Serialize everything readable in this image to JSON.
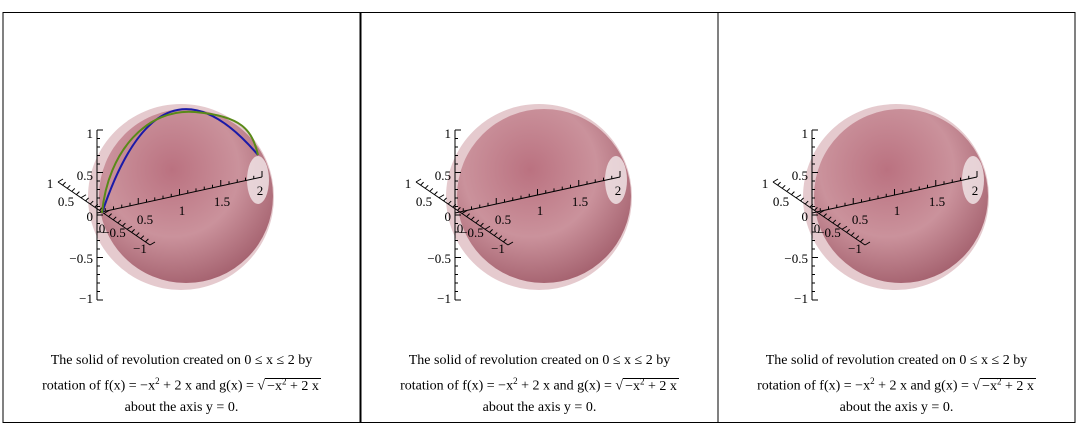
{
  "panels": [
    {
      "y_axis_ticks": [
        "1",
        "0.5",
        "0",
        "−0.5",
        "−1"
      ],
      "x_axis_ticks": [
        "0.5",
        "1",
        "1.5",
        "2"
      ],
      "depth_axis_ticks": [
        "1",
        "0.5",
        "0",
        "−0.5",
        "−1"
      ],
      "caption": {
        "line1": "The solid of revolution created on 0 ≤ x ≤ 2 by",
        "f_text": "rotation of f(x) = −x",
        "f_exp": "2",
        "mid": " + 2 x and g(x) = ",
        "g_base": "−x",
        "g_exp": "2",
        "g_tail": " + 2 x",
        "line3": "about the axis y = 0."
      }
    },
    {
      "y_axis_ticks": [
        "1",
        "0.5",
        "0",
        "−0.5",
        "−1"
      ],
      "x_axis_ticks": [
        "0.5",
        "1",
        "1.5",
        "2"
      ],
      "depth_axis_ticks": [
        "1",
        "0.5",
        "0",
        "−0.5",
        "−1"
      ],
      "caption": {
        "line1": "The solid of revolution created on 0 ≤ x ≤ 2 by",
        "f_text": "rotation of f(x) = −x",
        "f_exp": "2",
        "mid": " + 2 x and g(x) = ",
        "g_base": "−x",
        "g_exp": "2",
        "g_tail": " + 2 x",
        "line3": "about the axis y = 0."
      }
    },
    {
      "y_axis_ticks": [
        "1",
        "0.5",
        "0",
        "−0.5",
        "−1"
      ],
      "x_axis_ticks": [
        "0.5",
        "1",
        "1.5",
        "2"
      ],
      "depth_axis_ticks": [
        "1",
        "0.5",
        "0",
        "−0.5",
        "−1"
      ],
      "caption": {
        "line1": "The solid of revolution created on 0 ≤ x ≤ 2 by",
        "f_text": "rotation of f(x) = −x",
        "f_exp": "2",
        "mid": " + 2 x and g(x) = ",
        "g_base": "−x",
        "g_exp": "2",
        "g_tail": " + 2 x",
        "line3": "about the axis y = 0."
      }
    }
  ]
}
